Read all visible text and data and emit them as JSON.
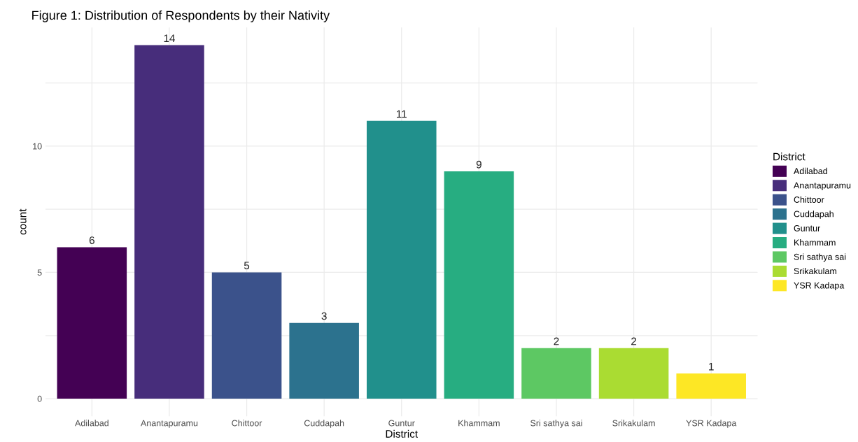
{
  "chart_data": {
    "type": "bar",
    "title": "Figure 1: Distribution of Respondents by their Nativity",
    "xlabel": "District",
    "ylabel": "count",
    "legend_title": "District",
    "categories": [
      "Adilabad",
      "Anantapuramu",
      "Chittoor",
      "Cuddapah",
      "Guntur",
      "Khammam",
      "Sri sathya sai",
      "Srikakulam",
      "YSR Kadapa"
    ],
    "series": [
      {
        "name": "Adilabad",
        "color": "#440154",
        "values": [
          6,
          null,
          null,
          null,
          null,
          null,
          null,
          null,
          null
        ]
      },
      {
        "name": "Anantapuramu",
        "color": "#472d7b",
        "values": [
          null,
          14,
          null,
          null,
          null,
          null,
          null,
          null,
          null
        ]
      },
      {
        "name": "Chittoor",
        "color": "#3b528b",
        "values": [
          null,
          null,
          5,
          null,
          null,
          null,
          null,
          null,
          null
        ]
      },
      {
        "name": "Cuddapah",
        "color": "#2c728e",
        "values": [
          null,
          null,
          null,
          3,
          null,
          null,
          null,
          null,
          null
        ]
      },
      {
        "name": "Guntur",
        "color": "#21908c",
        "values": [
          null,
          null,
          null,
          null,
          11,
          null,
          null,
          null,
          null
        ]
      },
      {
        "name": "Khammam",
        "color": "#27ad81",
        "values": [
          null,
          null,
          null,
          null,
          null,
          9,
          null,
          null,
          null
        ]
      },
      {
        "name": "Sri sathya sai",
        "color": "#5dc863",
        "values": [
          null,
          null,
          null,
          null,
          null,
          null,
          2,
          null,
          null
        ]
      },
      {
        "name": "Srikakulam",
        "color": "#aadc32",
        "values": [
          null,
          null,
          null,
          null,
          null,
          null,
          null,
          2,
          null
        ]
      },
      {
        "name": "YSR Kadapa",
        "color": "#fde725",
        "values": [
          null,
          null,
          null,
          null,
          null,
          null,
          null,
          null,
          1
        ]
      }
    ],
    "ylim": [
      -0.7,
      14.7
    ],
    "yticks": [
      0,
      {
        "value": 2.5,
        "label": null
      },
      5,
      {
        "value": 7.5,
        "label": null
      },
      10,
      {
        "value": 12.5,
        "label": null
      }
    ],
    "grid": true,
    "legend": "right",
    "data_labels": true
  }
}
